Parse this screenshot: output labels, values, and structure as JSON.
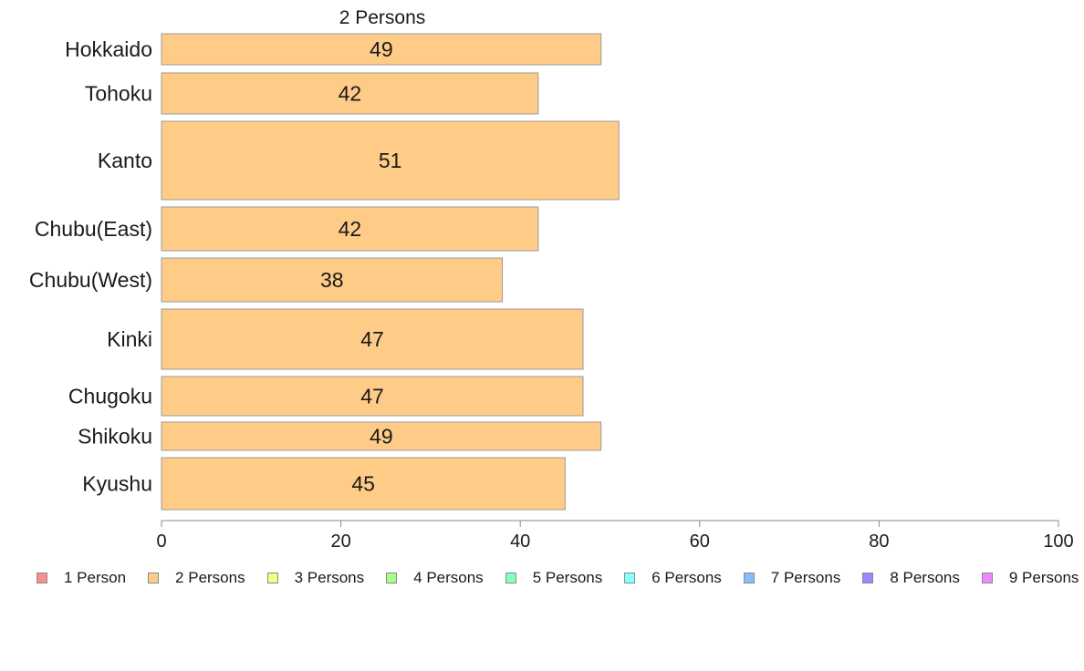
{
  "chart_data": {
    "type": "bar",
    "orientation": "horizontal",
    "title": "2 Persons",
    "categories": [
      "Hokkaido",
      "Tohoku",
      "Kanto",
      "Chubu(East)",
      "Chubu(West)",
      "Kinki",
      "Chugoku",
      "Shikoku",
      "Kyushu"
    ],
    "series": [
      {
        "name": "2 Persons",
        "values": [
          49,
          42,
          51,
          42,
          38,
          47,
          47,
          49,
          45
        ],
        "color": "#ffcc88"
      }
    ],
    "data_labels": [
      "49",
      "42",
      "51",
      "42",
      "38",
      "47",
      "47",
      "49",
      "45"
    ],
    "xlim": [
      0,
      100
    ],
    "xticks": [
      0,
      20,
      40,
      60,
      80,
      100
    ],
    "xtick_labels": [
      "0",
      "20",
      "40",
      "60",
      "80",
      "100"
    ],
    "grid": false,
    "legend_position": "bottom",
    "legend": [
      {
        "label": "1 Person",
        "color": "#ff8c8c"
      },
      {
        "label": "2 Persons",
        "color": "#ffcc88"
      },
      {
        "label": "3 Persons",
        "color": "#eeff88"
      },
      {
        "label": "4 Persons",
        "color": "#a6ff88"
      },
      {
        "label": "5 Persons",
        "color": "#88ffbb"
      },
      {
        "label": "6 Persons",
        "color": "#88ffff"
      },
      {
        "label": "7 Persons",
        "color": "#88bbff"
      },
      {
        "label": "8 Persons",
        "color": "#9988ff"
      },
      {
        "label": "9 Persons",
        "color": "#ee88ff"
      }
    ]
  }
}
